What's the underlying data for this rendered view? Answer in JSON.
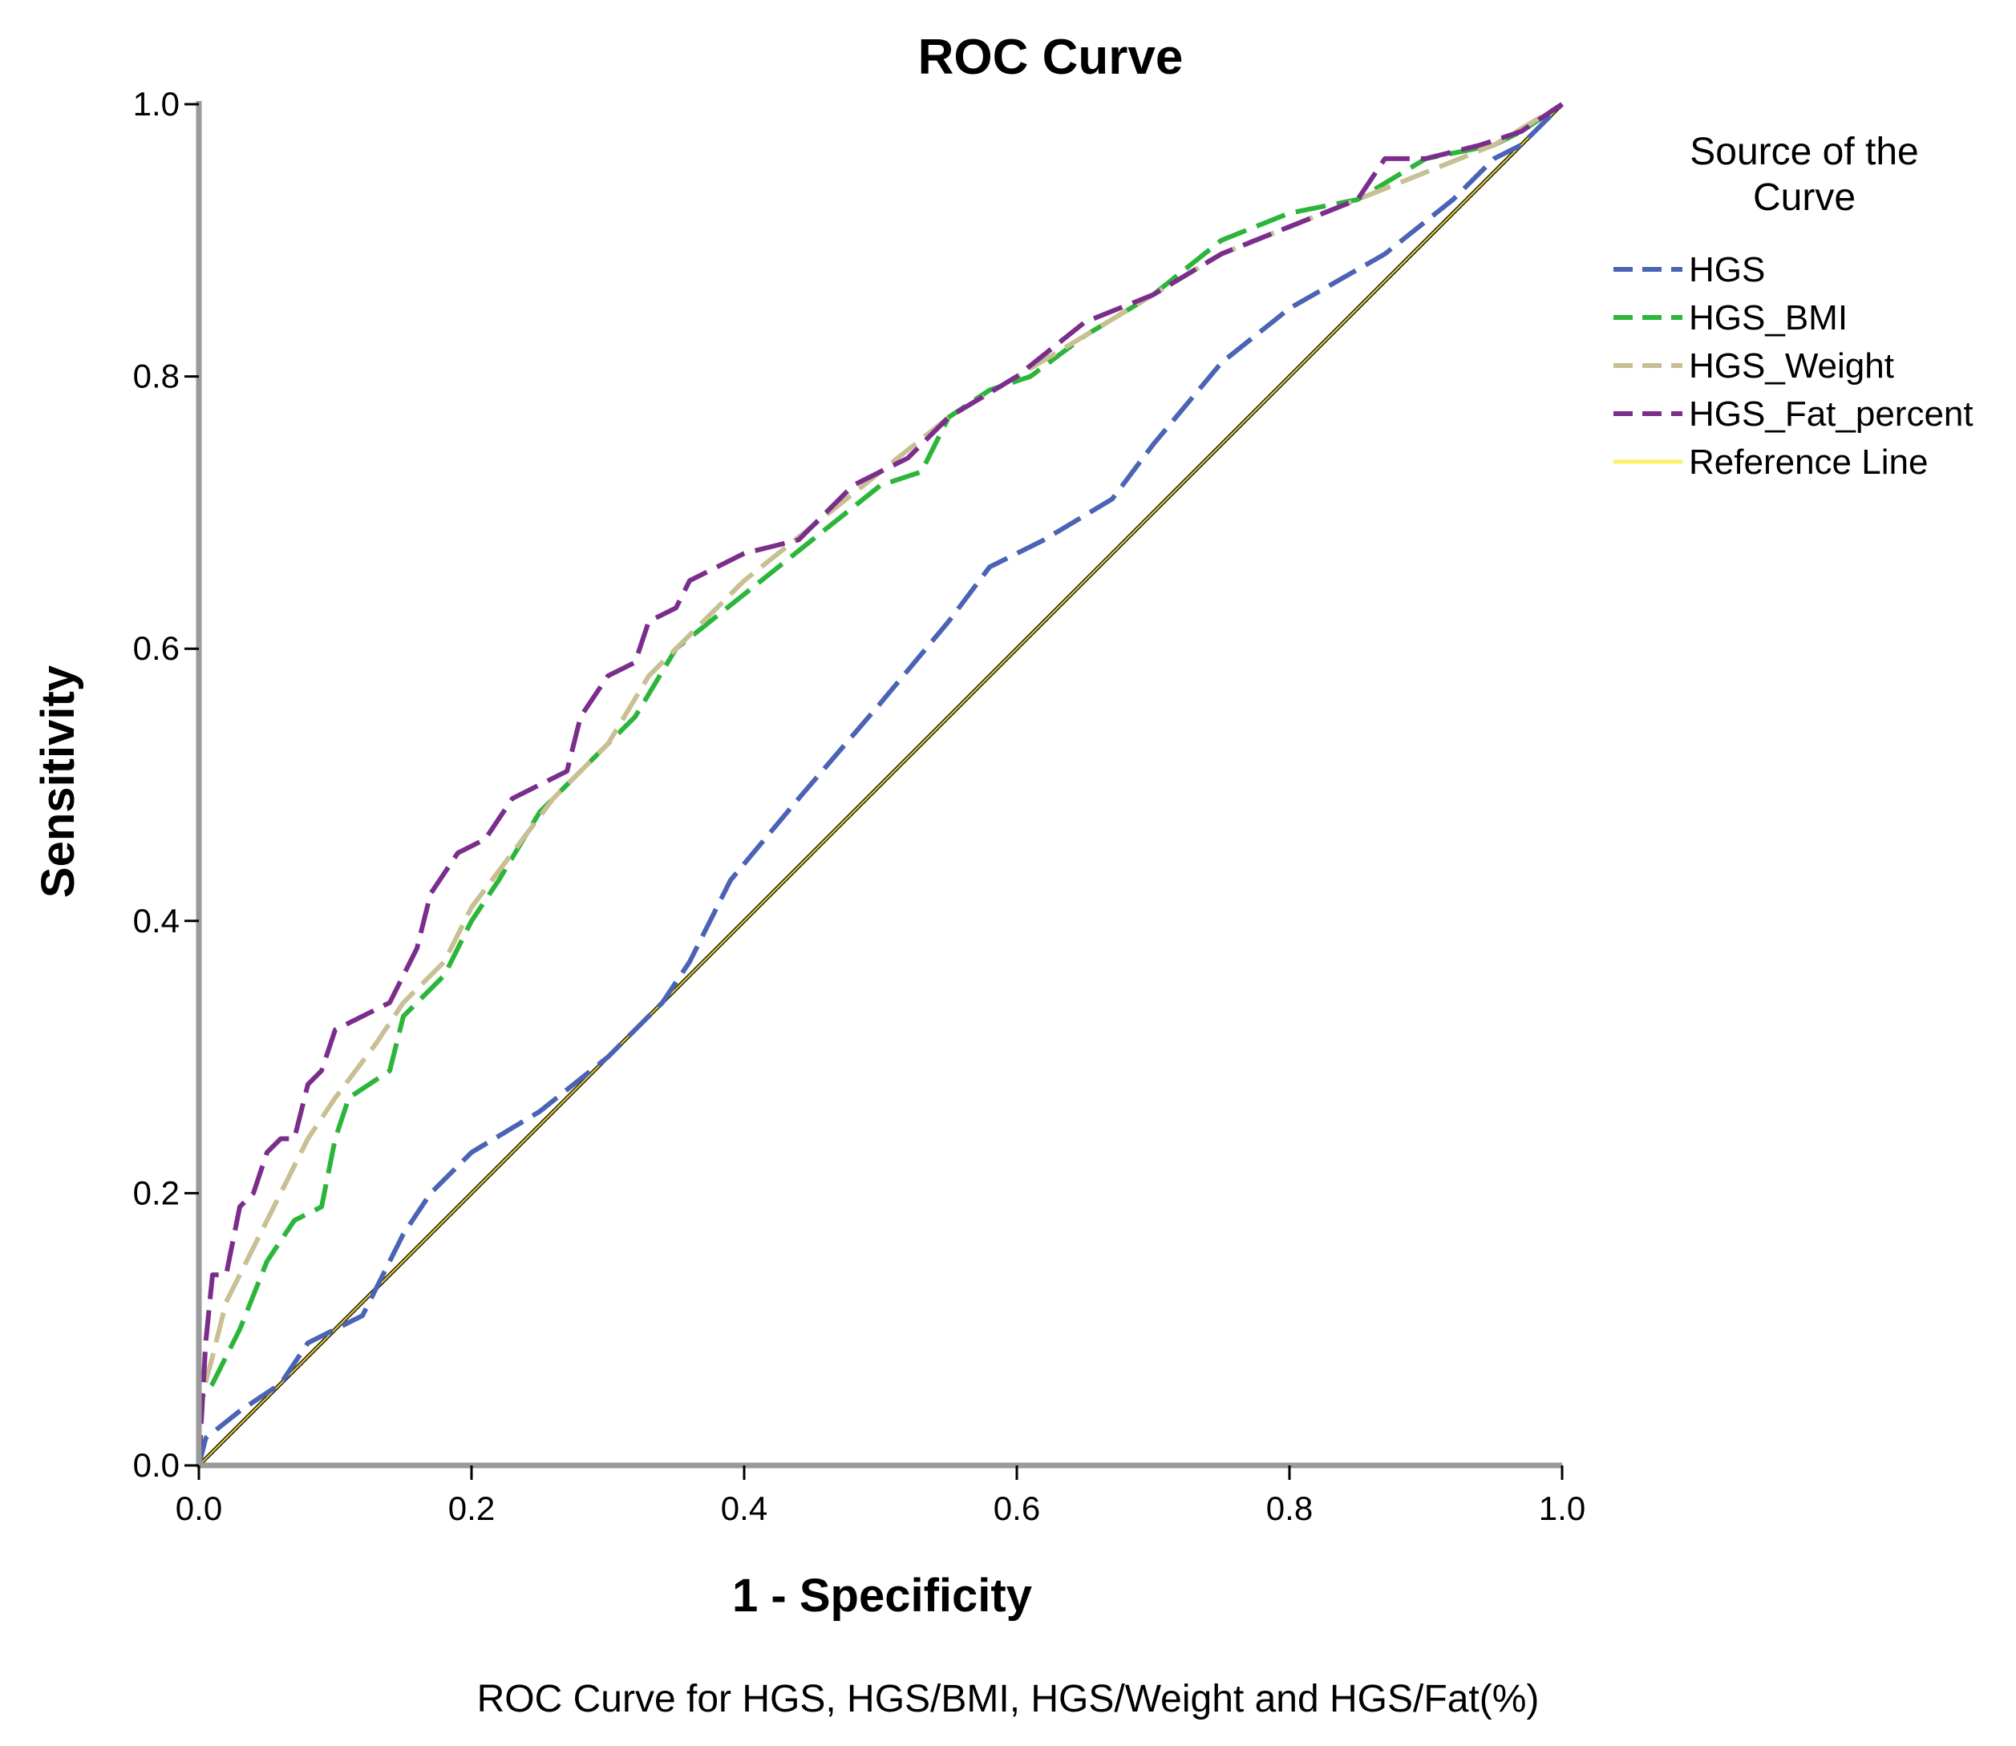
{
  "chart_data": {
    "type": "line",
    "title": "ROC Curve",
    "xlabel": "1 - Specificity",
    "ylabel": "Sensitivity",
    "xlim": [
      0,
      1
    ],
    "ylim": [
      0,
      1
    ],
    "x_ticks": [
      0.0,
      0.2,
      0.4,
      0.6,
      0.8,
      1.0
    ],
    "y_ticks": [
      0.0,
      0.2,
      0.4,
      0.6,
      0.8,
      1.0
    ],
    "x_tick_labels": [
      "0.0",
      "0.2",
      "0.4",
      "0.6",
      "0.8",
      "1.0"
    ],
    "y_tick_labels": [
      "0.0",
      "0.2",
      "0.4",
      "0.6",
      "0.8",
      "1.0"
    ],
    "grid": false,
    "legend": {
      "title_line1": "Source of the",
      "title_line2": "Curve",
      "placement": "top-right outside"
    },
    "caption": "ROC Curve for HGS, HGS/BMI, HGS/Weight and HGS/Fat(%)",
    "series": [
      {
        "name": "HGS",
        "color": "#4a63b5",
        "style": "dashed",
        "points": [
          [
            0,
            0
          ],
          [
            0.005,
            0.02
          ],
          [
            0.03,
            0.04
          ],
          [
            0.06,
            0.06
          ],
          [
            0.08,
            0.09
          ],
          [
            0.1,
            0.1
          ],
          [
            0.12,
            0.11
          ],
          [
            0.13,
            0.13
          ],
          [
            0.15,
            0.17
          ],
          [
            0.17,
            0.2
          ],
          [
            0.2,
            0.23
          ],
          [
            0.25,
            0.26
          ],
          [
            0.3,
            0.3
          ],
          [
            0.34,
            0.34
          ],
          [
            0.36,
            0.37
          ],
          [
            0.39,
            0.43
          ],
          [
            0.44,
            0.49
          ],
          [
            0.5,
            0.56
          ],
          [
            0.55,
            0.62
          ],
          [
            0.58,
            0.66
          ],
          [
            0.62,
            0.68
          ],
          [
            0.67,
            0.71
          ],
          [
            0.7,
            0.75
          ],
          [
            0.75,
            0.81
          ],
          [
            0.8,
            0.85
          ],
          [
            0.87,
            0.89
          ],
          [
            0.92,
            0.93
          ],
          [
            0.95,
            0.96
          ],
          [
            0.97,
            0.97
          ],
          [
            1,
            1
          ]
        ]
      },
      {
        "name": "HGS_BMI",
        "color": "#2bb53a",
        "style": "dashed",
        "points": [
          [
            0,
            0
          ],
          [
            0.002,
            0.05
          ],
          [
            0.01,
            0.06
          ],
          [
            0.03,
            0.1
          ],
          [
            0.05,
            0.15
          ],
          [
            0.07,
            0.18
          ],
          [
            0.09,
            0.19
          ],
          [
            0.1,
            0.24
          ],
          [
            0.11,
            0.27
          ],
          [
            0.14,
            0.29
          ],
          [
            0.15,
            0.33
          ],
          [
            0.18,
            0.36
          ],
          [
            0.2,
            0.4
          ],
          [
            0.22,
            0.43
          ],
          [
            0.25,
            0.48
          ],
          [
            0.28,
            0.51
          ],
          [
            0.32,
            0.55
          ],
          [
            0.35,
            0.6
          ],
          [
            0.4,
            0.64
          ],
          [
            0.45,
            0.68
          ],
          [
            0.5,
            0.72
          ],
          [
            0.53,
            0.73
          ],
          [
            0.55,
            0.77
          ],
          [
            0.58,
            0.79
          ],
          [
            0.61,
            0.8
          ],
          [
            0.65,
            0.83
          ],
          [
            0.7,
            0.86
          ],
          [
            0.75,
            0.9
          ],
          [
            0.8,
            0.92
          ],
          [
            0.85,
            0.93
          ],
          [
            0.9,
            0.96
          ],
          [
            0.95,
            0.97
          ],
          [
            0.97,
            0.98
          ],
          [
            1,
            1
          ]
        ]
      },
      {
        "name": "HGS_Weight",
        "color": "#c9bf94",
        "style": "dashed",
        "points": [
          [
            0,
            0
          ],
          [
            0.002,
            0.05
          ],
          [
            0.01,
            0.08
          ],
          [
            0.02,
            0.12
          ],
          [
            0.04,
            0.16
          ],
          [
            0.06,
            0.2
          ],
          [
            0.08,
            0.24
          ],
          [
            0.1,
            0.27
          ],
          [
            0.13,
            0.31
          ],
          [
            0.15,
            0.34
          ],
          [
            0.18,
            0.37
          ],
          [
            0.2,
            0.41
          ],
          [
            0.23,
            0.45
          ],
          [
            0.26,
            0.49
          ],
          [
            0.3,
            0.53
          ],
          [
            0.33,
            0.58
          ],
          [
            0.36,
            0.61
          ],
          [
            0.4,
            0.65
          ],
          [
            0.45,
            0.69
          ],
          [
            0.5,
            0.73
          ],
          [
            0.55,
            0.77
          ],
          [
            0.6,
            0.8
          ],
          [
            0.65,
            0.83
          ],
          [
            0.7,
            0.86
          ],
          [
            0.75,
            0.89
          ],
          [
            0.8,
            0.91
          ],
          [
            0.85,
            0.93
          ],
          [
            0.9,
            0.95
          ],
          [
            0.95,
            0.97
          ],
          [
            1,
            1
          ]
        ]
      },
      {
        "name": "HGS_Fat_percent",
        "color": "#7b2d8b",
        "style": "dashed",
        "points": [
          [
            0,
            0
          ],
          [
            0.005,
            0.09
          ],
          [
            0.01,
            0.14
          ],
          [
            0.02,
            0.14
          ],
          [
            0.03,
            0.19
          ],
          [
            0.04,
            0.2
          ],
          [
            0.05,
            0.23
          ],
          [
            0.06,
            0.24
          ],
          [
            0.07,
            0.24
          ],
          [
            0.08,
            0.28
          ],
          [
            0.09,
            0.29
          ],
          [
            0.1,
            0.32
          ],
          [
            0.12,
            0.33
          ],
          [
            0.14,
            0.34
          ],
          [
            0.16,
            0.38
          ],
          [
            0.17,
            0.42
          ],
          [
            0.19,
            0.45
          ],
          [
            0.21,
            0.46
          ],
          [
            0.23,
            0.49
          ],
          [
            0.25,
            0.5
          ],
          [
            0.27,
            0.51
          ],
          [
            0.28,
            0.55
          ],
          [
            0.3,
            0.58
          ],
          [
            0.32,
            0.59
          ],
          [
            0.33,
            0.62
          ],
          [
            0.35,
            0.63
          ],
          [
            0.36,
            0.65
          ],
          [
            0.4,
            0.67
          ],
          [
            0.44,
            0.68
          ],
          [
            0.48,
            0.72
          ],
          [
            0.52,
            0.74
          ],
          [
            0.55,
            0.77
          ],
          [
            0.6,
            0.8
          ],
          [
            0.65,
            0.84
          ],
          [
            0.7,
            0.86
          ],
          [
            0.75,
            0.89
          ],
          [
            0.8,
            0.91
          ],
          [
            0.85,
            0.93
          ],
          [
            0.87,
            0.96
          ],
          [
            0.9,
            0.96
          ],
          [
            0.94,
            0.97
          ],
          [
            0.97,
            0.98
          ],
          [
            1,
            1
          ]
        ]
      },
      {
        "name": "Reference Line",
        "color": "#fff06a",
        "style": "solid",
        "points": [
          [
            0,
            0
          ],
          [
            1,
            1
          ]
        ]
      }
    ]
  }
}
